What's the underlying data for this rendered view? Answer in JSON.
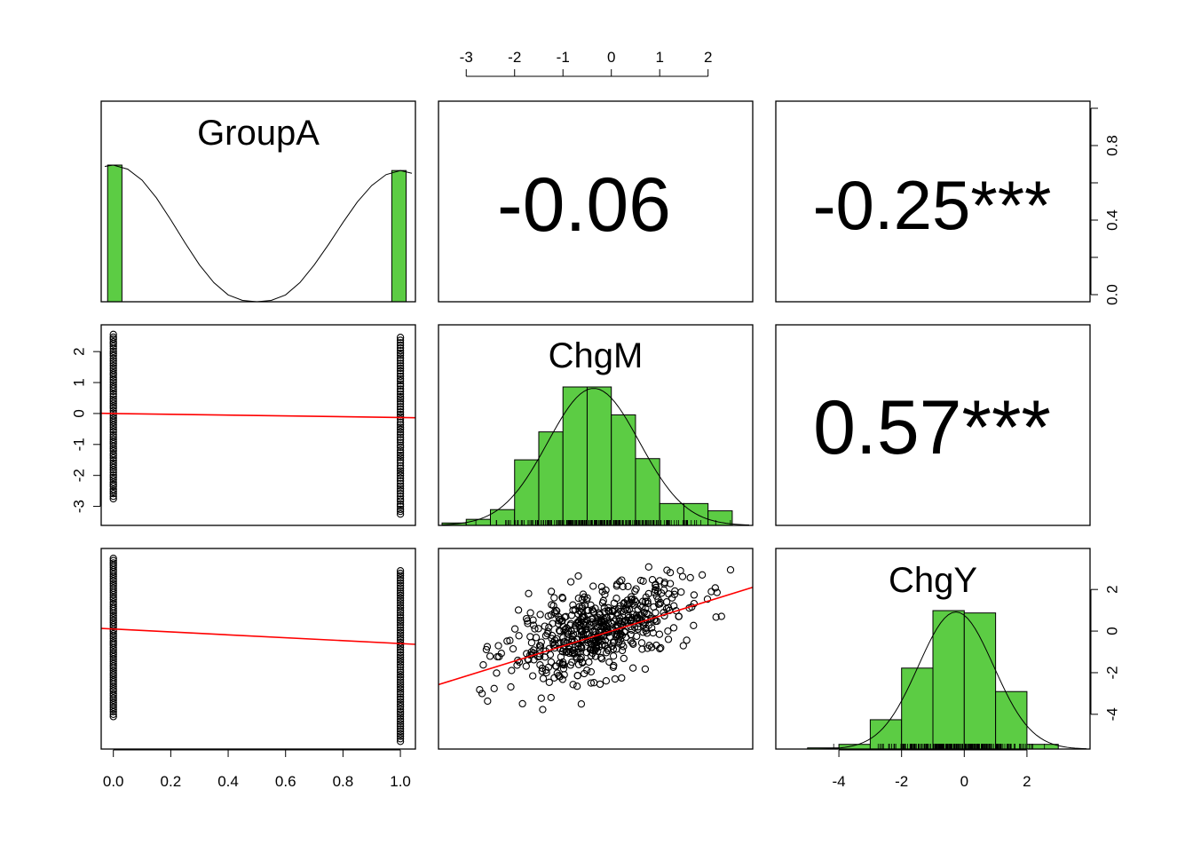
{
  "figure_title": "",
  "colors": {
    "bar": "#5ccc44",
    "fit": "#ff0000",
    "ink": "#000000"
  },
  "variables": [
    "GroupA",
    "ChgM",
    "ChgY"
  ],
  "chart_data": [
    {
      "type": "histogram",
      "panel": "GroupA-diagonal",
      "label": "GroupA",
      "xlim": [
        -0.03,
        1.04
      ],
      "bins": [
        {
          "x0": -0.02,
          "x1": 0.03,
          "count": 1
        },
        {
          "x0": 0.97,
          "x1": 1.02,
          "count": 0.96
        }
      ],
      "density_curve": [
        [
          -0.03,
          0.99
        ],
        [
          0.0,
          1.0
        ],
        [
          0.05,
          0.97
        ],
        [
          0.1,
          0.89
        ],
        [
          0.15,
          0.76
        ],
        [
          0.2,
          0.6
        ],
        [
          0.25,
          0.43
        ],
        [
          0.3,
          0.27
        ],
        [
          0.35,
          0.14
        ],
        [
          0.4,
          0.05
        ],
        [
          0.45,
          0.01
        ],
        [
          0.5,
          0.0
        ],
        [
          0.55,
          0.01
        ],
        [
          0.6,
          0.05
        ],
        [
          0.65,
          0.14
        ],
        [
          0.7,
          0.27
        ],
        [
          0.75,
          0.42
        ],
        [
          0.8,
          0.58
        ],
        [
          0.85,
          0.73
        ],
        [
          0.9,
          0.85
        ],
        [
          0.95,
          0.93
        ],
        [
          1.0,
          0.96
        ],
        [
          1.04,
          0.94
        ]
      ]
    },
    {
      "type": "correlation",
      "panel": "GroupA-ChgM",
      "value": "-0.06"
    },
    {
      "type": "correlation",
      "panel": "GroupA-ChgY",
      "value": "-0.25***"
    },
    {
      "type": "correlation",
      "panel": "ChgM-ChgY",
      "value": "0.57***"
    },
    {
      "type": "histogram",
      "panel": "ChgM-diagonal",
      "label": "ChgM",
      "xlim": [
        -3.5,
        2.85
      ],
      "bins": [
        {
          "x0": -3.5,
          "x1": -3.0,
          "count": 2
        },
        {
          "x0": -3.0,
          "x1": -2.5,
          "count": 5
        },
        {
          "x0": -2.5,
          "x1": -2.0,
          "count": 13
        },
        {
          "x0": -2.0,
          "x1": -1.5,
          "count": 54
        },
        {
          "x0": -1.5,
          "x1": -1.0,
          "count": 77
        },
        {
          "x0": -1.0,
          "x1": -0.5,
          "count": 114
        },
        {
          "x0": -0.5,
          "x1": 0.0,
          "count": 114
        },
        {
          "x0": 0.0,
          "x1": 0.5,
          "count": 91
        },
        {
          "x0": 0.5,
          "x1": 1.0,
          "count": 55
        },
        {
          "x0": 1.0,
          "x1": 1.5,
          "count": 18
        },
        {
          "x0": 1.5,
          "x1": 2.0,
          "count": 18
        },
        {
          "x0": 2.0,
          "x1": 2.5,
          "count": 12
        }
      ],
      "density_peak": 114
    },
    {
      "type": "histogram",
      "panel": "ChgY-diagonal",
      "label": "ChgY",
      "xlim": [
        -5.9,
        3.9
      ],
      "bins": [
        {
          "x0": -5.0,
          "x1": -4.0,
          "count": 1
        },
        {
          "x0": -4.0,
          "x1": -3.0,
          "count": 4
        },
        {
          "x0": -3.0,
          "x1": -2.0,
          "count": 25
        },
        {
          "x0": -2.0,
          "x1": -1.0,
          "count": 69
        },
        {
          "x0": -1.0,
          "x1": 0.0,
          "count": 118
        },
        {
          "x0": 0.0,
          "x1": 1.0,
          "count": 116
        },
        {
          "x0": 1.0,
          "x1": 2.0,
          "count": 49
        },
        {
          "x0": 2.0,
          "x1": 3.0,
          "count": 4
        }
      ],
      "density_peak": 118
    },
    {
      "type": "scatter",
      "panel": "ChgM-vs-GroupA",
      "x": "GroupA",
      "y": "ChgM",
      "xlim": [
        -0.03,
        1.04
      ],
      "ylim": [
        -3.5,
        2.75
      ],
      "groups": [
        {
          "x": 0,
          "ymin": -2.75,
          "ymax": 2.55
        },
        {
          "x": 1,
          "ymin": -3.25,
          "ymax": 2.45
        }
      ],
      "fit": {
        "intercept": 0.0,
        "slope": -0.13
      }
    },
    {
      "type": "scatter",
      "panel": "ChgY-vs-GroupA",
      "x": "GroupA",
      "y": "ChgY",
      "xlim": [
        -0.03,
        1.04
      ],
      "ylim": [
        -5.5,
        3.8
      ],
      "groups": [
        {
          "x": 0,
          "ymin": -4.1,
          "ymax": 3.5
        },
        {
          "x": 1,
          "ymin": -5.3,
          "ymax": 2.9
        }
      ],
      "fit": {
        "intercept": 0.1,
        "slope": -0.7
      }
    },
    {
      "type": "scatter",
      "panel": "ChgY-vs-ChgM",
      "x": "ChgM",
      "y": "ChgY",
      "xlim": [
        -3.5,
        2.85
      ],
      "ylim": [
        -5.5,
        3.8
      ],
      "n_points": 560,
      "x_mean": -0.3,
      "x_sd": 0.95,
      "y_mean": 0,
      "y_sd": 1.2,
      "r": 0.57,
      "fit": {
        "intercept": 0.0,
        "slope": 0.72
      }
    }
  ],
  "axes": {
    "top_ticks": [
      "-3",
      "-2",
      "-1",
      "0",
      "1",
      "2"
    ],
    "top_values": [
      -3,
      -2,
      -1,
      0,
      1,
      2
    ],
    "right_top_ticks": [
      "0.0",
      "0.4",
      "0.8"
    ],
    "right_top_values": [
      0,
      0.4,
      0.8
    ],
    "right_top_minor": [
      0.2,
      0.6,
      1.0
    ],
    "left_mid_ticks": [
      "2",
      "1",
      "0",
      "-1",
      "-2",
      "-3"
    ],
    "left_mid_values": [
      2,
      1,
      0,
      -1,
      -2,
      -3
    ],
    "bottom_left_ticks": [
      "0.0",
      "0.2",
      "0.4",
      "0.6",
      "0.8",
      "1.0"
    ],
    "bottom_left_values": [
      0,
      0.2,
      0.4,
      0.6,
      0.8,
      1.0
    ],
    "bottom_right_ticks": [
      "-4",
      "-2",
      "0",
      "2"
    ],
    "bottom_right_values": [
      -4,
      -2,
      0,
      2
    ],
    "right_bottom_ticks": [
      "2",
      "0",
      "-2",
      "-4"
    ],
    "right_bottom_values": [
      2,
      0,
      -2,
      -4
    ]
  }
}
